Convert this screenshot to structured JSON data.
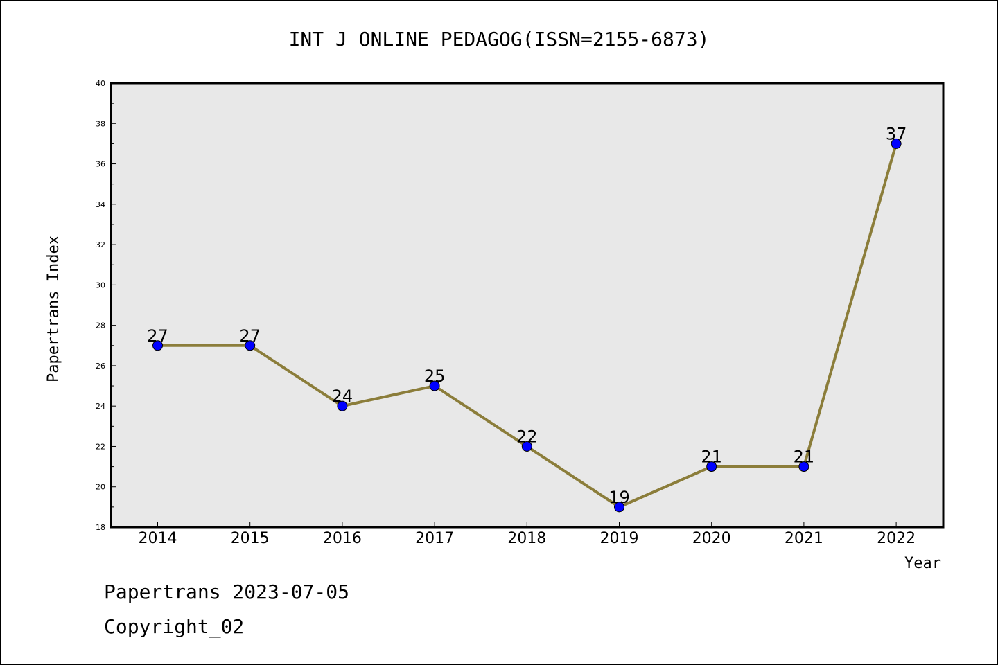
{
  "chart_data": {
    "type": "line",
    "title": "INT J ONLINE PEDAGOG(ISSN=2155-6873)",
    "xlabel": "Year",
    "ylabel": "Papertrans Index",
    "x": [
      "2014",
      "2015",
      "2016",
      "2017",
      "2018",
      "2019",
      "2020",
      "2021",
      "2022"
    ],
    "series": [
      {
        "values": [
          27,
          27,
          24,
          25,
          22,
          19,
          21,
          21,
          37
        ]
      }
    ],
    "ylim": [
      18,
      40
    ],
    "yticks": [
      "18",
      "20",
      "22",
      "24",
      "26",
      "28",
      "30",
      "32",
      "34",
      "36",
      "38",
      "40"
    ],
    "grid": false,
    "colors": {
      "line": "#8B7D3A",
      "marker": "#0000FF",
      "plot_bg": "#E8E8E8"
    }
  },
  "footer": {
    "line1": "Papertrans 2023-07-05",
    "line2": "Copyright_02"
  }
}
